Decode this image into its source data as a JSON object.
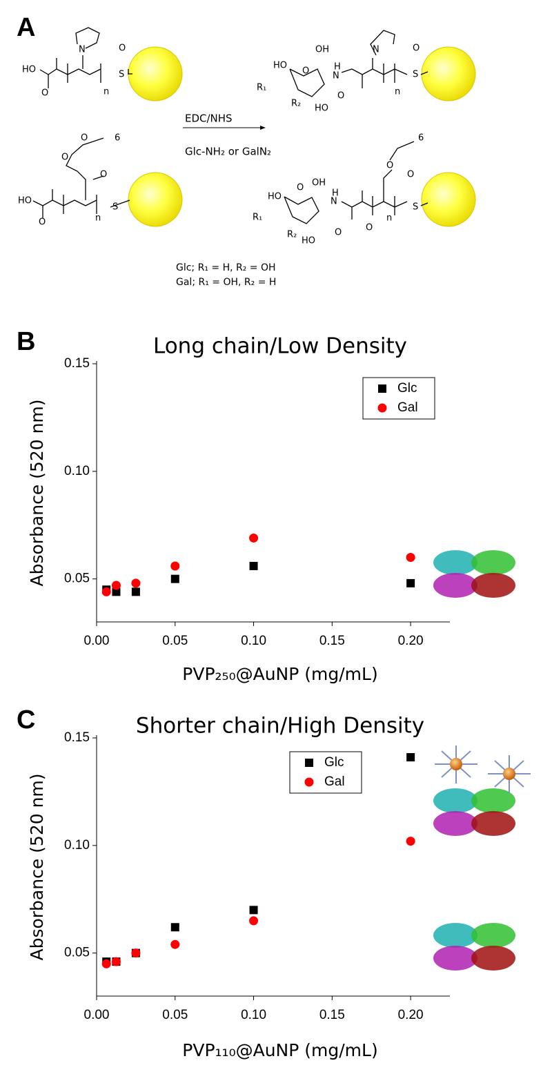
{
  "labels": {
    "a": "A",
    "b": "B",
    "c": "C"
  },
  "scheme": {
    "reagent_top": "EDC/NHS",
    "reagent_bottom": "Glc-NH₂ or GalN₂",
    "note_glc": "Glc; R₁ = H, R₂ = OH",
    "note_gal": "Gal; R₁ = OH, R₂ = H",
    "atoms": [
      "HO",
      "O",
      "N",
      "O",
      "S",
      "n",
      "O",
      "6",
      "O",
      "O",
      "HO",
      "O",
      "S",
      "n",
      "HO",
      "O",
      "OH",
      "H",
      "N",
      "R₁",
      "R₂",
      "HO",
      "O",
      "N",
      "O",
      "S",
      "n",
      "HO",
      "O",
      "OH",
      "H",
      "N",
      "R₁",
      "R₂",
      "HO",
      "O",
      "O",
      "6",
      "O",
      "O",
      "S",
      "n"
    ]
  },
  "chart_data": [
    {
      "type": "scatter",
      "title": "Long chain/Low Density",
      "x_label": "PVP₂₅₀@AuNP (mg/mL)",
      "y_label": "Absorbance (520 nm)",
      "x": [
        0.00625,
        0.0125,
        0.025,
        0.05,
        0.1,
        0.2
      ],
      "series": [
        {
          "name": "Glc",
          "color": "#000000",
          "marker": "square",
          "values": [
            0.045,
            0.044,
            0.044,
            0.05,
            0.056,
            0.048
          ]
        },
        {
          "name": "Gal",
          "color": "#ff0000",
          "marker": "circle",
          "values": [
            0.044,
            0.047,
            0.048,
            0.056,
            0.069,
            0.06
          ]
        }
      ],
      "xlim": [
        0,
        0.225
      ],
      "ylim": [
        0.03,
        0.15
      ],
      "xticks": [
        {
          "value": 0,
          "label": "0.00"
        },
        0.05,
        {
          "value": 0.1,
          "label": "0.10"
        },
        0.15,
        {
          "value": 0.2,
          "label": "0.20"
        }
      ],
      "yticks": [
        0.05,
        {
          "value": 0.1,
          "label": "0.10"
        },
        0.15
      ],
      "legend": "upper right"
    },
    {
      "type": "scatter",
      "title": "Shorter chain/High Density",
      "x_label": "PVP₁₁₀@AuNP (mg/mL)",
      "y_label": "Absorbance (520 nm)",
      "x": [
        0.00625,
        0.0125,
        0.025,
        0.05,
        0.1,
        0.2
      ],
      "series": [
        {
          "name": "Glc",
          "color": "#000000",
          "marker": "square",
          "values": [
            0.046,
            0.046,
            0.05,
            0.062,
            0.07,
            0.141
          ]
        },
        {
          "name": "Gal",
          "color": "#ff0000",
          "marker": "circle",
          "values": [
            0.045,
            0.046,
            0.05,
            0.054,
            0.065,
            0.102
          ]
        }
      ],
      "xlim": [
        0,
        0.225
      ],
      "ylim": [
        0.03,
        0.15
      ],
      "xticks": [
        {
          "value": 0,
          "label": "0.00"
        },
        0.05,
        {
          "value": 0.1,
          "label": "0.10"
        },
        0.15,
        {
          "value": 0.2,
          "label": "0.20"
        }
      ],
      "yticks": [
        0.05,
        {
          "value": 0.1,
          "label": "0.10"
        },
        0.15
      ],
      "legend": "upper center"
    }
  ]
}
